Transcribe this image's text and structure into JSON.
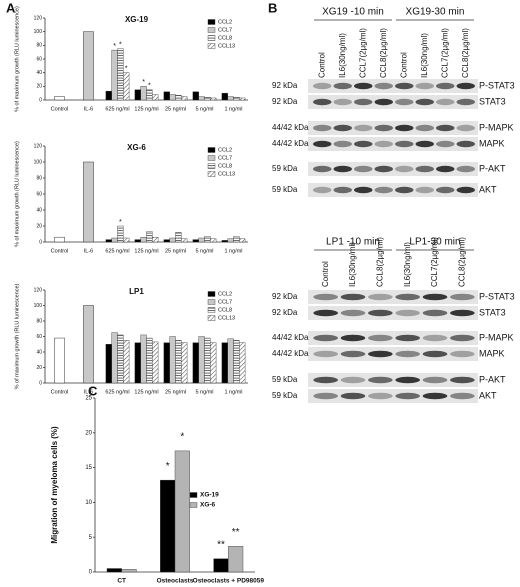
{
  "panel_labels": [
    "A",
    "B",
    "C"
  ],
  "chart_data": [
    {
      "type": "bar",
      "title": "XG-19",
      "ylabel": "% of maximum growth (RLU luminescence)",
      "categories": [
        "Control",
        "IL-6",
        "625 ng/ml",
        "125 ng/ml",
        "25 ng/ml",
        "5 ng/ml",
        "1 ng/ml"
      ],
      "values": [
        5,
        100,
        null,
        null,
        null,
        null,
        null
      ],
      "value_colors": [
        "#ffffff",
        "#c8c8c8"
      ],
      "series": [
        {
          "name": "CCL2",
          "color": "#000000",
          "pattern": "solid",
          "values": [
            null,
            null,
            13,
            15,
            12,
            12,
            10
          ]
        },
        {
          "name": "CCL7",
          "color": "#c8c8c8",
          "pattern": "solid",
          "values": [
            null,
            null,
            73,
            20,
            8,
            5,
            5
          ]
        },
        {
          "name": "CCL8",
          "color": "#555555",
          "pattern": "horizontal",
          "values": [
            null,
            null,
            75,
            15,
            7,
            4,
            4
          ]
        },
        {
          "name": "CCL13",
          "color": "#555555",
          "pattern": "diagonal",
          "values": [
            null,
            null,
            40,
            8,
            5,
            3,
            3
          ]
        }
      ],
      "annotations": [
        {
          "text": "*",
          "category": 2,
          "series": 1
        },
        {
          "text": "*",
          "category": 2,
          "series": 2
        },
        {
          "text": "*",
          "category": 2,
          "series": 3
        },
        {
          "text": "*",
          "category": 3,
          "series": 1
        },
        {
          "text": "*",
          "category": 3,
          "series": 2
        }
      ],
      "ylim": [
        0,
        120
      ],
      "yticks": [
        0,
        20,
        40,
        60,
        80,
        100,
        120
      ],
      "legend": "upper right"
    },
    {
      "type": "bar",
      "title": "XG-6",
      "ylabel": "% of maximum growth (RLU luminescence)",
      "categories": [
        "Control",
        "IL-6",
        "625 ng/ml",
        "125 ng/ml",
        "25 ng/ml",
        "5 ng/ml",
        "1 ng/ml"
      ],
      "values": [
        6,
        100,
        null,
        null,
        null,
        null,
        null
      ],
      "value_colors": [
        "#ffffff",
        "#c8c8c8"
      ],
      "series": [
        {
          "name": "CCL2",
          "color": "#000000",
          "pattern": "solid",
          "values": [
            null,
            null,
            3,
            3,
            3,
            3,
            2
          ]
        },
        {
          "name": "CCL7",
          "color": "#c8c8c8",
          "pattern": "solid",
          "values": [
            null,
            null,
            5,
            6,
            5,
            5,
            4
          ]
        },
        {
          "name": "CCL8",
          "color": "#555555",
          "pattern": "horizontal",
          "values": [
            null,
            null,
            20,
            13,
            12,
            7,
            7
          ]
        },
        {
          "name": "CCL13",
          "color": "#555555",
          "pattern": "diagonal",
          "values": [
            null,
            null,
            5,
            6,
            4,
            4,
            4
          ]
        }
      ],
      "annotations": [
        {
          "text": "*",
          "category": 2,
          "series": 2
        }
      ],
      "ylim": [
        0,
        120
      ],
      "yticks": [
        0,
        20,
        40,
        60,
        80,
        100,
        120
      ],
      "legend": "upper right"
    },
    {
      "type": "bar",
      "title": "LP1",
      "ylabel": "% of maximum growth (RLU luminescence)",
      "categories": [
        "Control",
        "IL-6",
        "625 ng/ml",
        "125 ng/ml",
        "25 ng/ml",
        "5 ng/ml",
        "1 ng/ml"
      ],
      "values": [
        58,
        100,
        null,
        null,
        null,
        null,
        null
      ],
      "value_colors": [
        "#ffffff",
        "#c8c8c8"
      ],
      "series": [
        {
          "name": "CCL2",
          "color": "#000000",
          "pattern": "solid",
          "values": [
            null,
            null,
            50,
            52,
            52,
            52,
            52
          ]
        },
        {
          "name": "CCL7",
          "color": "#c8c8c8",
          "pattern": "solid",
          "values": [
            null,
            null,
            65,
            62,
            60,
            60,
            57
          ]
        },
        {
          "name": "CCL8",
          "color": "#555555",
          "pattern": "horizontal",
          "values": [
            null,
            null,
            62,
            58,
            55,
            58,
            55
          ]
        },
        {
          "name": "CCL13",
          "color": "#555555",
          "pattern": "diagonal",
          "values": [
            null,
            null,
            55,
            53,
            52,
            52,
            52
          ]
        }
      ],
      "annotations": [],
      "ylim": [
        0,
        120
      ],
      "yticks": [
        0,
        20,
        40,
        60,
        80,
        100,
        120
      ],
      "legend": "upper right"
    },
    {
      "type": "bar",
      "ylabel": "Migration of myeloma cells (%)",
      "categories": [
        "CT",
        "Osteoclasts",
        "Osteoclasts + PD98059"
      ],
      "series": [
        {
          "name": "XG-19",
          "color": "#000000",
          "pattern": "solid",
          "values": [
            0.5,
            13.2,
            1.9
          ]
        },
        {
          "name": "XG-6",
          "color": "#b4b4b4",
          "pattern": "solid",
          "values": [
            0.4,
            17.4,
            3.7
          ]
        }
      ],
      "annotations": [
        {
          "text": "*",
          "category": 1,
          "series": 0
        },
        {
          "text": "*",
          "category": 1,
          "series": 1
        },
        {
          "text": "**",
          "category": 2,
          "series": 0
        },
        {
          "text": "**",
          "category": 2,
          "series": 1
        }
      ],
      "ylim": [
        0,
        25
      ],
      "yticks": [
        0,
        5,
        10,
        15,
        20,
        25
      ],
      "legend": "center right"
    }
  ],
  "blots": [
    {
      "groups": [
        {
          "header": "XG19 -10 min",
          "lanes": [
            "Control",
            "IL6(30ng/ml)",
            "CCL7(2µg/ml)",
            "CCL8(2µg/ml)"
          ]
        },
        {
          "header": "XG19-30 min",
          "lanes": [
            "Control",
            "IL6(30ng/ml)",
            "CCL7(2µg/ml)",
            "CCL8(2µg/ml)"
          ]
        }
      ],
      "rows": [
        {
          "size": "92 kDa",
          "protein": "P-STAT3"
        },
        {
          "size": "92 kDa",
          "protein": "STAT3"
        },
        {
          "size": "44/42 kDa",
          "protein": "P-MAPK"
        },
        {
          "size": "44/42 kDa",
          "protein": "MAPK"
        },
        {
          "size": "59 kDa",
          "protein": "P-AKT"
        },
        {
          "size": "59 kDa",
          "protein": "AKT"
        }
      ]
    },
    {
      "groups": [
        {
          "header": "LP1 -10 min",
          "lanes": [
            "Control",
            "IL6(30ng/ml)",
            "CCL8(2µg/ml)"
          ]
        },
        {
          "header": "LP1-30 min",
          "lanes": [
            "IL6(30ng/ml)",
            "CCL7(2µg/ml)",
            "CCL8(2µg/ml)"
          ]
        }
      ],
      "rows": [
        {
          "size": "92 kDa",
          "protein": "P-STAT3"
        },
        {
          "size": "92 kDa",
          "protein": "STAT3"
        },
        {
          "size": "44/42 kDa",
          "protein": "P-MAPK"
        },
        {
          "size": "44/42 kDa",
          "protein": "MAPK"
        },
        {
          "size": "59 kDa",
          "protein": "P-AKT"
        },
        {
          "size": "59 kDa",
          "protein": "AKT"
        }
      ]
    }
  ]
}
